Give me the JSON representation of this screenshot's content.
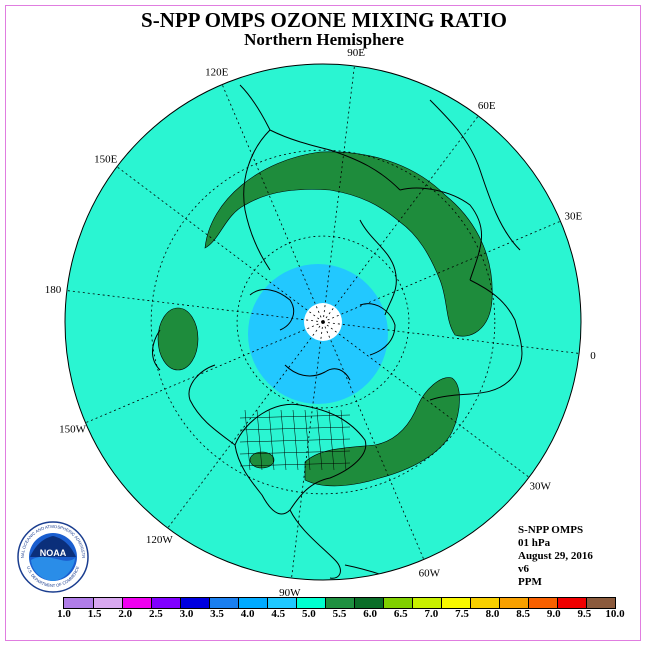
{
  "title": "S-NPP OMPS OZONE MIXING RATIO",
  "subtitle": "Northern Hemisphere",
  "longitude_labels": [
    "90E",
    "60E",
    "30E",
    "0",
    "30W",
    "60W",
    "90W",
    "120W",
    "150W",
    "180",
    "150E",
    "120E"
  ],
  "info": {
    "line1": "S-NPP OMPS",
    "line2": "01 hPa",
    "line3": "August 29, 2016",
    "line4": "v6",
    "line5": "PPM"
  },
  "colorbar": {
    "labels": [
      "1.0",
      "1.5",
      "2.0",
      "2.5",
      "3.0",
      "3.5",
      "4.0",
      "4.5",
      "5.0",
      "5.5",
      "6.0",
      "6.5",
      "7.0",
      "7.5",
      "8.0",
      "8.5",
      "9.0",
      "9.5",
      "10.0"
    ],
    "colors": [
      "#b07de8",
      "#d8a8f0",
      "#f000f0",
      "#8000ff",
      "#0000e0",
      "#1a7ff0",
      "#00aaff",
      "#1ec8ff",
      "#00ffd0",
      "#1e9040",
      "#0a6e28",
      "#80d000",
      "#c8f000",
      "#f8f800",
      "#f8d000",
      "#f8a000",
      "#f86000",
      "#f00000",
      "#8b5a3c"
    ]
  },
  "map_colors": {
    "background": "#2af5d2",
    "green": "#1e8c3c",
    "blue": "#22c8ff",
    "pole": "#ffffff"
  },
  "logo": {
    "text": "NOAA",
    "ring_text": "NATIONAL OCEANIC AND ATMOSPHERIC ADMINISTRATION",
    "ring_text_bottom": "U.S. DEPARTMENT OF COMMERCE"
  }
}
